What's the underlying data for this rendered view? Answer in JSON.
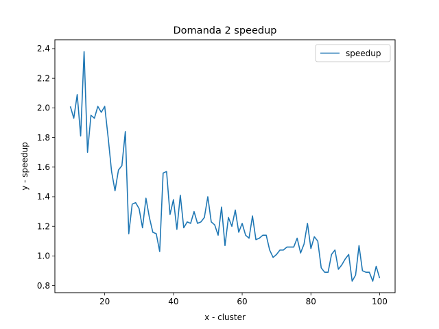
{
  "chart_data": {
    "type": "line",
    "title": "Domanda 2 speedup",
    "xlabel": "x - cluster",
    "ylabel": "y - speedup",
    "xlim": [
      5.5,
      104.5
    ],
    "ylim": [
      0.752,
      2.46
    ],
    "xticks": [
      20,
      40,
      60,
      80,
      100
    ],
    "yticks": [
      0.8,
      1.0,
      1.2,
      1.4,
      1.6,
      1.8,
      2.0,
      2.2,
      2.4
    ],
    "xtick_labels": [
      "20",
      "40",
      "60",
      "80",
      "100"
    ],
    "ytick_labels": [
      "0.8",
      "1.0",
      "1.2",
      "1.4",
      "1.6",
      "1.8",
      "2.0",
      "2.2",
      "2.4"
    ],
    "grid": false,
    "legend": {
      "position": "top-right"
    },
    "series": [
      {
        "name": "speedup",
        "color": "#1f77b4",
        "x": [
          10,
          11,
          12,
          13,
          14,
          15,
          16,
          17,
          18,
          19,
          20,
          21,
          22,
          23,
          24,
          25,
          26,
          27,
          28,
          29,
          30,
          31,
          32,
          33,
          34,
          35,
          36,
          37,
          38,
          39,
          40,
          41,
          42,
          43,
          44,
          45,
          46,
          47,
          48,
          49,
          50,
          51,
          52,
          53,
          54,
          55,
          56,
          57,
          58,
          59,
          60,
          61,
          62,
          63,
          64,
          65,
          66,
          67,
          68,
          69,
          70,
          71,
          72,
          73,
          74,
          75,
          76,
          77,
          78,
          79,
          80,
          81,
          82,
          83,
          84,
          85,
          86,
          87,
          88,
          89,
          90,
          91,
          92,
          93,
          94,
          95,
          96,
          97,
          98,
          99,
          100
        ],
        "y": [
          2.01,
          1.93,
          2.09,
          1.81,
          2.38,
          1.7,
          1.95,
          1.93,
          2.01,
          1.97,
          2.01,
          1.8,
          1.57,
          1.44,
          1.58,
          1.61,
          1.84,
          1.15,
          1.35,
          1.36,
          1.32,
          1.19,
          1.39,
          1.26,
          1.16,
          1.15,
          1.03,
          1.56,
          1.57,
          1.28,
          1.38,
          1.18,
          1.41,
          1.19,
          1.23,
          1.22,
          1.3,
          1.22,
          1.23,
          1.26,
          1.4,
          1.23,
          1.21,
          1.14,
          1.33,
          1.07,
          1.26,
          1.2,
          1.31,
          1.16,
          1.22,
          1.14,
          1.12,
          1.27,
          1.11,
          1.12,
          1.14,
          1.14,
          1.04,
          0.99,
          1.01,
          1.04,
          1.04,
          1.06,
          1.06,
          1.06,
          1.12,
          1.02,
          1.08,
          1.22,
          1.05,
          1.13,
          1.1,
          0.92,
          0.89,
          0.89,
          1.01,
          1.04,
          0.91,
          0.94,
          0.98,
          1.01,
          0.83,
          0.87,
          1.07,
          0.9,
          0.89,
          0.89,
          0.83,
          0.93,
          0.85
        ]
      }
    ]
  }
}
